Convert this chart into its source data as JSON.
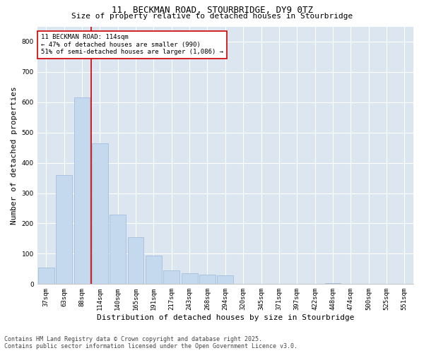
{
  "title_line1": "11, BECKMAN ROAD, STOURBRIDGE, DY9 0TZ",
  "title_line2": "Size of property relative to detached houses in Stourbridge",
  "xlabel": "Distribution of detached houses by size in Stourbridge",
  "ylabel": "Number of detached properties",
  "categories": [
    "37sqm",
    "63sqm",
    "88sqm",
    "114sqm",
    "140sqm",
    "165sqm",
    "191sqm",
    "217sqm",
    "243sqm",
    "268sqm",
    "294sqm",
    "320sqm",
    "345sqm",
    "371sqm",
    "397sqm",
    "422sqm",
    "448sqm",
    "474sqm",
    "500sqm",
    "525sqm",
    "551sqm"
  ],
  "values": [
    55,
    360,
    615,
    465,
    230,
    155,
    95,
    45,
    35,
    32,
    28,
    0,
    0,
    0,
    0,
    0,
    2,
    0,
    0,
    0,
    0
  ],
  "bar_color": "#c5d9ee",
  "bar_edge_color": "#9ab8d8",
  "vline_x": 2.5,
  "vline_color": "#cc0000",
  "annotation_text": "11 BECKMAN ROAD: 114sqm\n← 47% of detached houses are smaller (990)\n51% of semi-detached houses are larger (1,086) →",
  "annotation_box_color": "#ffffff",
  "annotation_box_edge_color": "#cc0000",
  "ylim": [
    0,
    850
  ],
  "yticks": [
    0,
    100,
    200,
    300,
    400,
    500,
    600,
    700,
    800
  ],
  "background_color": "#dce6f0",
  "footer_line1": "Contains HM Land Registry data © Crown copyright and database right 2025.",
  "footer_line2": "Contains public sector information licensed under the Open Government Licence v3.0.",
  "title_fontsize": 9,
  "subtitle_fontsize": 8,
  "tick_fontsize": 6.5,
  "ylabel_fontsize": 8,
  "xlabel_fontsize": 8,
  "footer_fontsize": 6,
  "annot_fontsize": 6.5
}
